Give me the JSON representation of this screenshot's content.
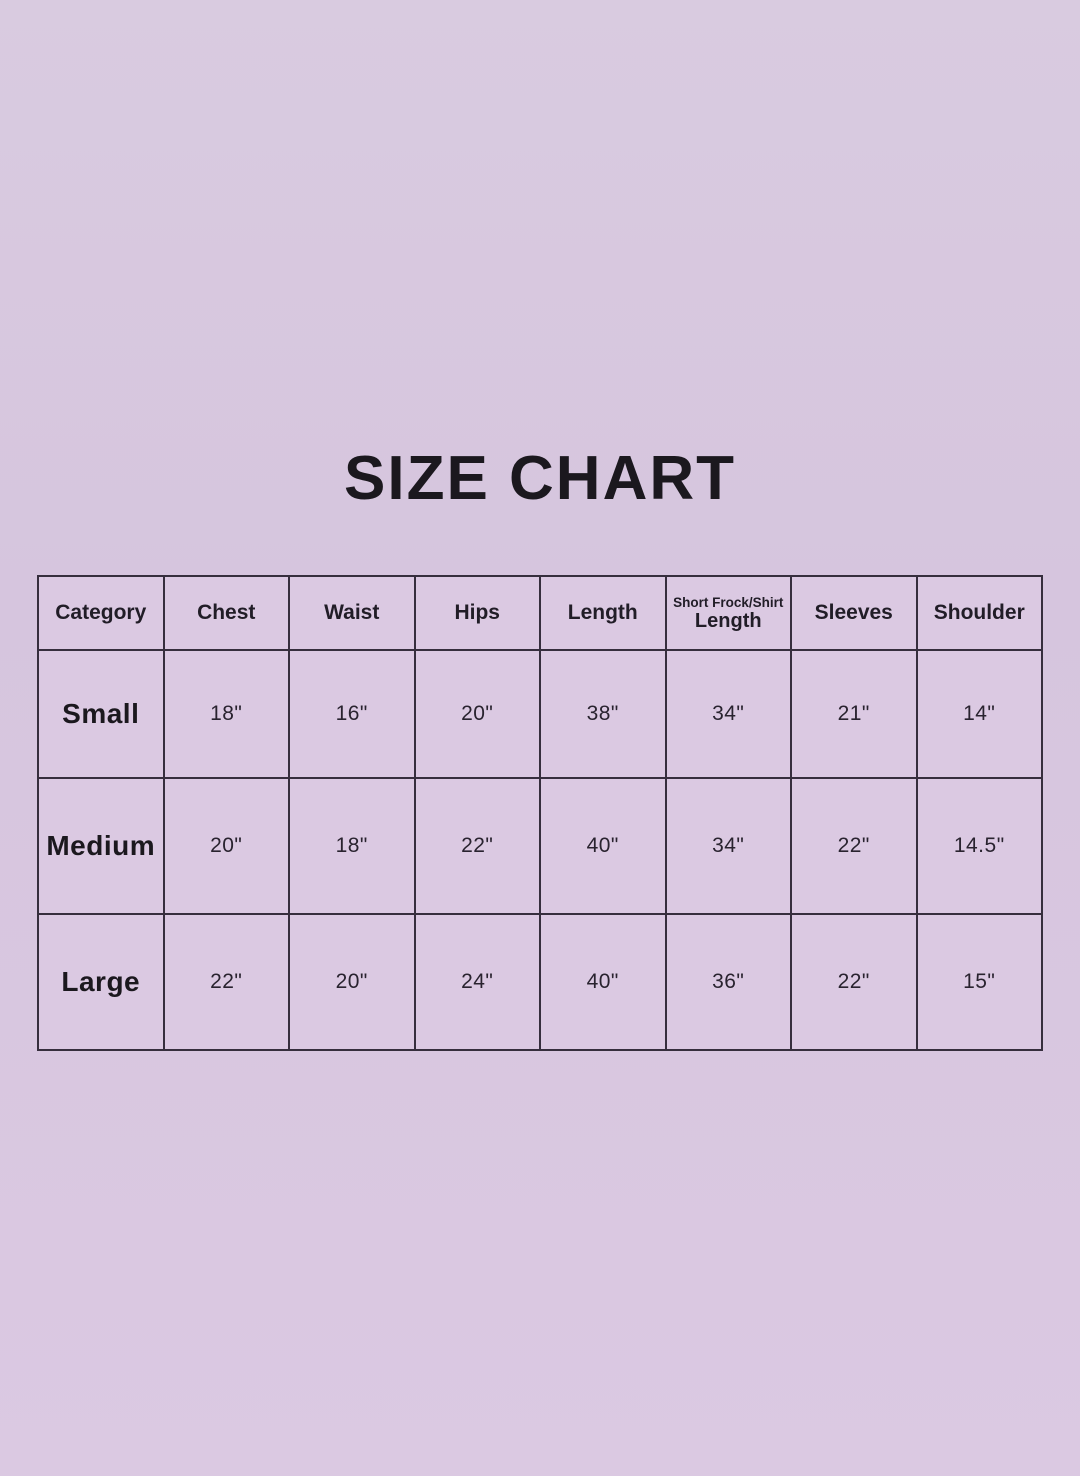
{
  "title": "SIZE CHART",
  "theme": {
    "background": "#d8c7df",
    "cell_background": "#dbc9e2",
    "border_color": "#362e3d",
    "text_color": "#1e1a22"
  },
  "chart_data": {
    "type": "table",
    "title": "SIZE CHART",
    "columns": [
      "Category",
      "Chest",
      "Waist",
      "Hips",
      "Length",
      "Short Frock/Shirt Length",
      "Sleeves",
      "Shoulder"
    ],
    "header_split": {
      "column_index": 5,
      "top": "Short Frock/Shirt",
      "bottom": "Length"
    },
    "rows": [
      [
        "Small",
        "18\"",
        "16\"",
        "20\"",
        "38\"",
        "34\"",
        "21\"",
        "14\""
      ],
      [
        "Medium",
        "20\"",
        "18\"",
        "22\"",
        "40\"",
        "34\"",
        "22\"",
        "14.5\""
      ],
      [
        "Large",
        "22\"",
        "20\"",
        "24\"",
        "40\"",
        "36\"",
        "22\"",
        "15\""
      ]
    ],
    "layout_hints": {
      "unit": "inches",
      "header_row": true,
      "grid": "all-borders"
    }
  }
}
